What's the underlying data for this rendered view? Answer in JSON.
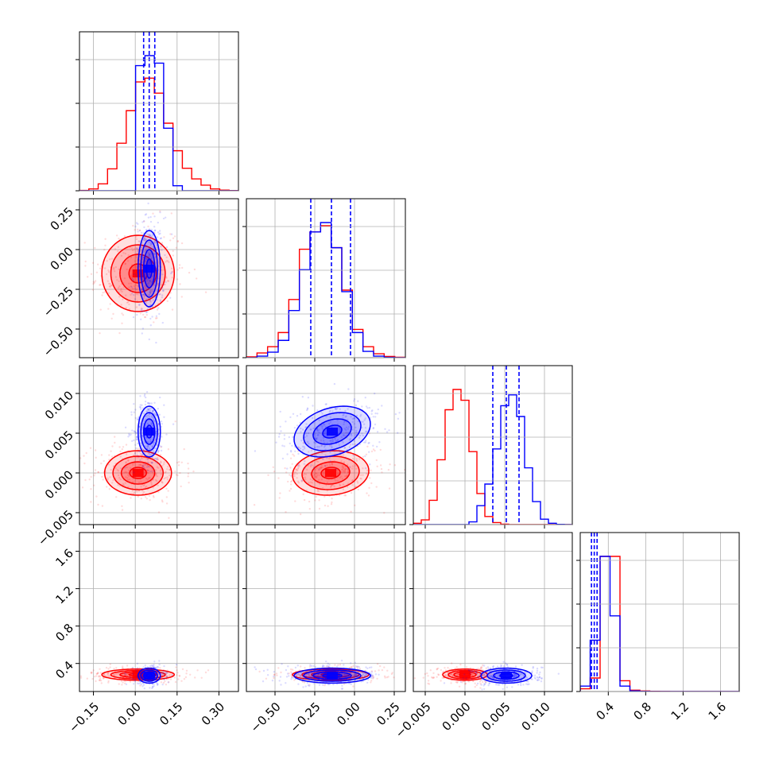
{
  "colors": {
    "red": "#ff0000",
    "blue": "#0000ff",
    "grid": "#b0b0b0"
  },
  "chart_data": {
    "type": "corner",
    "grid": true,
    "series": [
      {
        "color": "#ff0000"
      },
      {
        "color": "#0000ff"
      }
    ],
    "parameters": [
      {
        "range": [
          -0.2,
          0.37
        ],
        "ticks": [
          -0.15,
          0.0,
          0.15,
          0.3
        ],
        "tick_labels": [
          "−0.15",
          "0.00",
          "0.15",
          "0.30"
        ]
      },
      {
        "range": [
          -0.68,
          0.32
        ],
        "ticks": [
          -0.5,
          -0.25,
          0.0,
          0.25
        ],
        "tick_labels": [
          "−0.50",
          "−0.25",
          "0.00",
          "0.25"
        ]
      },
      {
        "range": [
          -0.0065,
          0.0135
        ],
        "ticks": [
          -0.005,
          0.0,
          0.005,
          0.01
        ],
        "tick_labels": [
          "−0.005",
          "0.000",
          "0.005",
          "0.010"
        ]
      },
      {
        "range": [
          0.1,
          1.8
        ],
        "ticks": [
          0.4,
          0.8,
          1.2,
          1.6
        ],
        "tick_labels": [
          "0.4",
          "0.8",
          "1.2",
          "1.6"
        ]
      }
    ],
    "histograms": [
      {
        "red": [
          3,
          15,
          55,
          175,
          380,
          640,
          870,
          900,
          780,
          540,
          320,
          180,
          95,
          45,
          15,
          5,
          2
        ],
        "blue": [
          0,
          0,
          0,
          0,
          0,
          0,
          1000,
          1080,
          1020,
          500,
          40,
          0,
          0,
          0,
          0,
          0,
          0
        ],
        "quantiles": [
          0.03,
          0.05,
          0.07
        ]
      },
      {
        "red": [
          5,
          30,
          70,
          160,
          370,
          690,
          800,
          840,
          700,
          430,
          180,
          70,
          25,
          8,
          3
        ],
        "blue": [
          0,
          10,
          35,
          110,
          300,
          560,
          800,
          860,
          700,
          420,
          160,
          40,
          10,
          2,
          0
        ],
        "quantiles": [
          -0.275,
          -0.145,
          -0.025
        ]
      },
      {
        "red": [
          10,
          35,
          180,
          480,
          850,
          1000,
          920,
          540,
          230,
          60,
          15,
          3,
          0,
          0,
          0,
          0,
          0,
          0,
          0,
          0
        ],
        "blue": [
          0,
          0,
          0,
          0,
          0,
          0,
          0,
          20,
          140,
          300,
          560,
          880,
          960,
          800,
          420,
          170,
          40,
          10,
          2,
          0
        ],
        "quantiles": [
          0.0035,
          0.0052,
          0.0068
        ]
      },
      {
        "red": [
          20,
          100,
          1000,
          1000,
          80,
          10,
          4,
          2,
          1,
          0,
          0,
          0,
          0,
          0,
          0,
          0
        ],
        "blue": [
          40,
          380,
          1000,
          560,
          40,
          5,
          1,
          0,
          0,
          0,
          0,
          0,
          0,
          0,
          0,
          0
        ],
        "quantiles": [
          0.22,
          0.25,
          0.28
        ]
      }
    ],
    "joint": [
      {
        "x": 0,
        "y": 1,
        "red": {
          "mean": [
            0.01,
            -0.15
          ],
          "sd": [
            0.065,
            0.12
          ],
          "rho": 0.0
        },
        "blue": {
          "mean": [
            0.05,
            -0.12
          ],
          "sd": [
            0.02,
            0.12
          ],
          "rho": 0.0
        }
      },
      {
        "x": 0,
        "y": 2,
        "red": {
          "mean": [
            0.01,
            0.0
          ],
          "sd": [
            0.06,
            0.0014
          ],
          "rho": 0.0
        },
        "blue": {
          "mean": [
            0.05,
            0.0052
          ],
          "sd": [
            0.02,
            0.0016
          ],
          "rho": 0.0
        }
      },
      {
        "x": 1,
        "y": 2,
        "red": {
          "mean": [
            -0.15,
            0.0
          ],
          "sd": [
            0.12,
            0.0014
          ],
          "rho": 0.1
        },
        "blue": {
          "mean": [
            -0.14,
            0.0052
          ],
          "sd": [
            0.12,
            0.0016
          ],
          "rho": 0.3
        }
      },
      {
        "x": 0,
        "y": 3,
        "red": {
          "mean": [
            0.01,
            0.28
          ],
          "sd": [
            0.065,
            0.03
          ],
          "rho": 0.0
        },
        "blue": {
          "mean": [
            0.05,
            0.27
          ],
          "sd": [
            0.02,
            0.04
          ],
          "rho": 0.0
        }
      },
      {
        "x": 1,
        "y": 3,
        "red": {
          "mean": [
            -0.15,
            0.28
          ],
          "sd": [
            0.12,
            0.03
          ],
          "rho": 0.0
        },
        "blue": {
          "mean": [
            -0.14,
            0.27
          ],
          "sd": [
            0.12,
            0.04
          ],
          "rho": 0.0
        }
      },
      {
        "x": 2,
        "y": 3,
        "red": {
          "mean": [
            0.0,
            0.28
          ],
          "sd": [
            0.0014,
            0.03
          ],
          "rho": 0.0
        },
        "blue": {
          "mean": [
            0.0052,
            0.27
          ],
          "sd": [
            0.0016,
            0.04
          ],
          "rho": 0.0
        }
      }
    ]
  }
}
